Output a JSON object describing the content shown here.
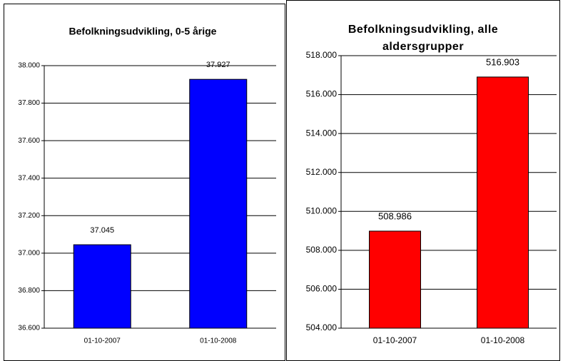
{
  "chart_data": [
    {
      "type": "bar",
      "title": "Befolkningsudvikling, 0-5 årige",
      "categories": [
        "01-10-2007",
        "01-10-2008"
      ],
      "values": [
        37045,
        37927
      ],
      "value_labels": [
        "37.045",
        "37.927"
      ],
      "color": "#0000ff",
      "ylim": [
        36600,
        38000
      ],
      "yticks": [
        {
          "value": 36600,
          "label": "36.600"
        },
        {
          "value": 36800,
          "label": "36.800"
        },
        {
          "value": 37000,
          "label": "37.000"
        },
        {
          "value": 37200,
          "label": "37.200"
        },
        {
          "value": 37400,
          "label": "37.400"
        },
        {
          "value": 37600,
          "label": "37.600"
        },
        {
          "value": 37800,
          "label": "37.800"
        },
        {
          "value": 38000,
          "label": "38.000"
        }
      ],
      "grid": true
    },
    {
      "type": "bar",
      "title": "Befolkningsudvikling, alle aldersgrupper",
      "categories": [
        "01-10-2007",
        "01-10-2008"
      ],
      "values": [
        508986,
        516903
      ],
      "value_labels": [
        "508.986",
        "516.903"
      ],
      "color": "#ff0000",
      "ylim": [
        504000,
        518000
      ],
      "yticks": [
        {
          "value": 504000,
          "label": "504.000"
        },
        {
          "value": 506000,
          "label": "506.000"
        },
        {
          "value": 508000,
          "label": "508.000"
        },
        {
          "value": 510000,
          "label": "510.000"
        },
        {
          "value": 512000,
          "label": "512.000"
        },
        {
          "value": 514000,
          "label": "514.000"
        },
        {
          "value": 516000,
          "label": "516.000"
        },
        {
          "value": 518000,
          "label": "518.000"
        }
      ],
      "grid": true
    }
  ]
}
